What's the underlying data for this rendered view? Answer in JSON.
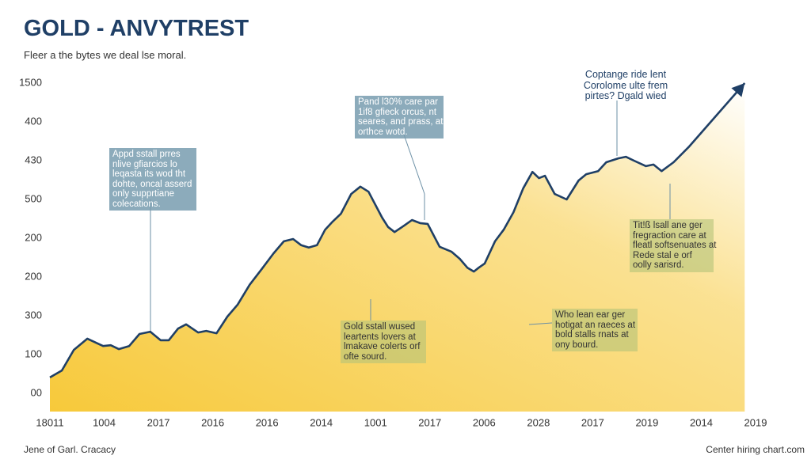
{
  "chart_data": {
    "type": "area",
    "title": "GOLD - ANVYTREST",
    "subtitle": "Fleer a the bytes we deal lse moral.",
    "footer_left": "Jene of Garl. Cracacy",
    "footer_right": "Center hiring chart.com",
    "color": "#1f3f66",
    "fill_color": "#f7c93a",
    "xlim": [
      0,
      13
    ],
    "ylim": [
      0,
      800
    ],
    "xticks": [
      {
        "value": 0,
        "label": "18011"
      },
      {
        "value": 1,
        "label": "1004"
      },
      {
        "value": 2,
        "label": "2017"
      },
      {
        "value": 3,
        "label": "2016"
      },
      {
        "value": 4,
        "label": "2016"
      },
      {
        "value": 5,
        "label": "2014"
      },
      {
        "value": 6,
        "label": "1001"
      },
      {
        "value": 7,
        "label": "2017"
      },
      {
        "value": 8,
        "label": "2006"
      },
      {
        "value": 9,
        "label": "2028"
      },
      {
        "value": 10,
        "label": "2017"
      },
      {
        "value": 11,
        "label": "2019"
      },
      {
        "value": 12,
        "label": "2014"
      },
      {
        "value": 13,
        "label": "2019"
      }
    ],
    "yticks": [
      {
        "value": 0,
        "label": "00"
      },
      100,
      {
        "value": 200,
        "label": "300"
      },
      {
        "value": 300,
        "label": "200"
      },
      {
        "value": 400,
        "label": "200"
      },
      500,
      {
        "value": 600,
        "label": "430"
      },
      {
        "value": 700,
        "label": "400"
      },
      {
        "value": 800,
        "label": "1500"
      }
    ],
    "x": [
      0,
      0.22,
      0.44,
      0.69,
      0.98,
      1.12,
      1.27,
      1.46,
      1.65,
      1.85,
      2.04,
      2.19,
      2.36,
      2.51,
      2.73,
      2.88,
      3.07,
      3.27,
      3.46,
      3.68,
      3.9,
      4.12,
      4.31,
      4.48,
      4.63,
      4.77,
      4.92,
      5.07,
      5.21,
      5.36,
      5.55,
      5.72,
      5.87,
      5.99,
      6.12,
      6.23,
      6.35,
      6.53,
      6.67,
      6.82,
      6.96,
      7.18,
      7.4,
      7.55,
      7.69,
      7.81,
      7.9,
      8.01,
      8.2,
      8.36,
      8.54,
      8.72,
      8.89,
      9.01,
      9.12,
      9.3,
      9.52,
      9.74,
      9.88,
      10.1,
      10.25,
      10.47,
      10.61,
      10.76,
      10.98,
      11.12,
      11.27,
      11.49,
      11.78,
      12.8
    ],
    "values": [
      41,
      59,
      112,
      141,
      122,
      124,
      114,
      122,
      153,
      159,
      137,
      137,
      167,
      178,
      157,
      161,
      155,
      198,
      229,
      280,
      320,
      361,
      392,
      398,
      382,
      376,
      382,
      422,
      443,
      463,
      514,
      533,
      520,
      488,
      453,
      429,
      416,
      433,
      447,
      439,
      437,
      378,
      365,
      347,
      324,
      314,
      324,
      335,
      392,
      422,
      467,
      529,
      571,
      555,
      561,
      514,
      500,
      549,
      565,
      573,
      596,
      606,
      610,
      600,
      586,
      590,
      573,
      596,
      637,
      800
    ],
    "annotations": [
      {
        "lines": [
          "Appd sstall prres",
          "nlive gfiarcios lo",
          "leqasta its wod tht",
          "dohte, oncal asserd",
          "only supprtiane",
          "colecations."
        ]
      },
      {
        "lines": [
          "Pand l30% care par",
          "1if8 gfieck orcus, nt",
          "seares, and prass, at",
          "orthce wotd."
        ]
      },
      {
        "lines": [
          "Coptange ride lent",
          "Corolome ulte frem",
          "pirtes? Dgald wied"
        ]
      },
      {
        "lines": [
          "Tit!ß lsall ane ger",
          "fregraction care at",
          "fleatl softsenuates at",
          "Rede stal e orf",
          "oolly sarisrd."
        ]
      },
      {
        "lines": [
          "Gold sstall wused",
          "leartents lovers at",
          "lmakave colerts orf",
          "ofte sourd."
        ]
      },
      {
        "lines": [
          "Who lean ear ger",
          "hotigat an raeces at",
          "bold stalls rnats at",
          "ony bourd."
        ]
      }
    ]
  }
}
